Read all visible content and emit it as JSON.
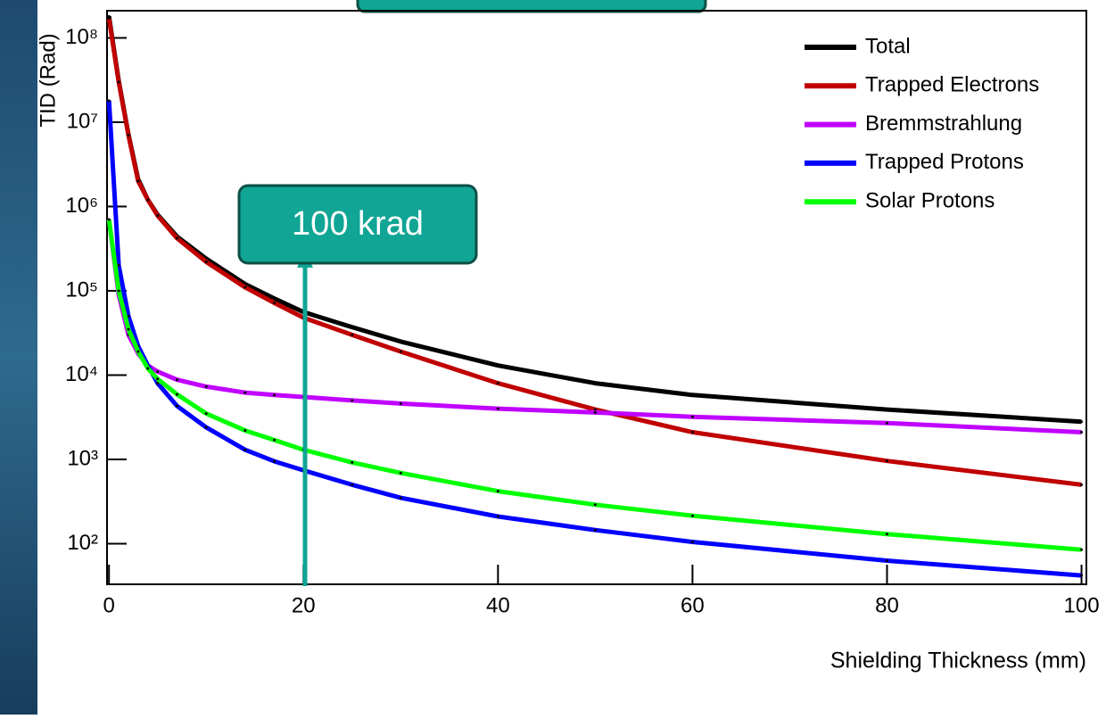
{
  "chart_data": {
    "type": "line",
    "y_label": "TID (Rad)",
    "x_label": "Shielding Thickness (mm)",
    "annotation": "100 krad",
    "log_y": true,
    "legend": "upper right",
    "xlim": [
      -0.2,
      100.5
    ],
    "ylim": [
      33,
      210000000
    ],
    "xticks": [
      0,
      20,
      40,
      60,
      80,
      100
    ],
    "yticks": [
      {
        "value": 100,
        "label": "10²"
      },
      {
        "value": 1000,
        "label": "10³"
      },
      {
        "value": 10000,
        "label": "10⁴"
      },
      {
        "value": 100000,
        "label": "10⁵"
      },
      {
        "value": 1000000,
        "label": "10⁶"
      },
      {
        "value": 10000000,
        "label": "10⁷"
      },
      {
        "value": 100000000,
        "label": "10⁸"
      }
    ],
    "x": [
      0,
      1,
      2,
      3,
      4,
      5,
      7,
      10,
      14,
      17,
      20,
      25,
      30,
      40,
      50,
      60,
      80,
      100
    ],
    "series": [
      {
        "name": "Total",
        "color": "#000000",
        "values": [
          180000000,
          31000000,
          7200000,
          2100000,
          1200000,
          800000,
          440000,
          240000,
          120000,
          81000,
          56000,
          37000,
          25000,
          13000,
          8000,
          5800,
          3900,
          2800
        ]
      },
      {
        "name": "Trapped Electrons",
        "color": "#c00000",
        "values": [
          170000000,
          30000000,
          7000000,
          2000000,
          1200000,
          780000,
          420000,
          220000,
          110000,
          72000,
          48000,
          30000,
          19000,
          8000,
          3900,
          2100,
          960,
          500
        ]
      },
      {
        "name": "Bremmstrahlung",
        "color": "#c000ff",
        "values": [
          700000,
          90000,
          30000,
          18000,
          13000,
          11000,
          8800,
          7300,
          6200,
          5800,
          5500,
          5000,
          4600,
          4000,
          3600,
          3200,
          2700,
          2100
        ]
      },
      {
        "name": "Trapped Protons",
        "color": "#0000ff",
        "values": [
          18000000,
          200000,
          50000,
          22000,
          13000,
          8000,
          4300,
          2400,
          1300,
          950,
          740,
          500,
          350,
          210,
          145,
          105,
          63,
          42
        ]
      },
      {
        "name": "Solar Protons",
        "color": "#00ff00",
        "values": [
          700000,
          100000,
          35000,
          19000,
          12000,
          9000,
          5900,
          3500,
          2200,
          1700,
          1300,
          920,
          690,
          420,
          290,
          215,
          130,
          85
        ]
      }
    ]
  }
}
